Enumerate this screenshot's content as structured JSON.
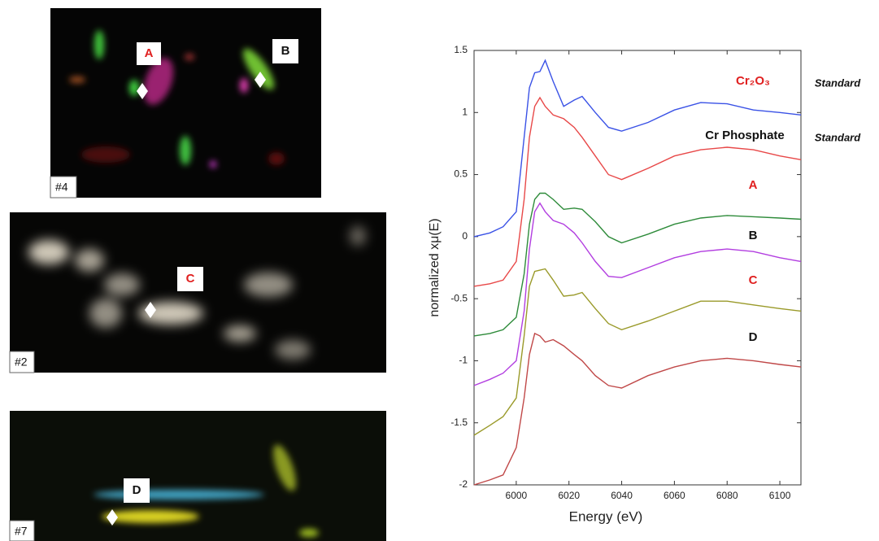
{
  "chart_data": {
    "type": "line",
    "xlabel": "Energy (eV)",
    "ylabel": "normalized xμ(E)",
    "x": [
      5984,
      5990,
      5995,
      6000,
      6003,
      6005,
      6007,
      6009,
      6011,
      6014,
      6018,
      6022,
      6025,
      6030,
      6035,
      6040,
      6050,
      6060,
      6070,
      6080,
      6090,
      6100,
      6108
    ],
    "xlim": [
      5984,
      6108
    ],
    "xticks": [
      6000,
      6020,
      6040,
      6060,
      6080,
      6100
    ],
    "ylim": [
      -2,
      1.5
    ],
    "yticks": [
      -2,
      -1.5,
      -1,
      -0.5,
      0,
      0.5,
      1,
      1.5
    ],
    "series": [
      {
        "name": "Cr₂O₃",
        "tag": "Standard",
        "color": "#3a52e6",
        "label_color": "#e02020",
        "values": [
          0.0,
          0.03,
          0.08,
          0.2,
          0.8,
          1.2,
          1.32,
          1.33,
          1.42,
          1.25,
          1.05,
          1.1,
          1.13,
          1.0,
          0.88,
          0.85,
          0.92,
          1.02,
          1.08,
          1.07,
          1.02,
          1.0,
          0.98
        ]
      },
      {
        "name": "Cr Phosphate",
        "tag": "Standard",
        "color": "#e84848",
        "label_color": "#111111",
        "values": [
          -0.4,
          -0.38,
          -0.35,
          -0.2,
          0.3,
          0.8,
          1.05,
          1.12,
          1.05,
          0.98,
          0.95,
          0.88,
          0.8,
          0.65,
          0.5,
          0.46,
          0.55,
          0.65,
          0.7,
          0.72,
          0.7,
          0.65,
          0.62
        ]
      },
      {
        "name": "A",
        "color": "#2e8b3a",
        "label_color": "#e02020",
        "values": [
          -0.8,
          -0.78,
          -0.75,
          -0.65,
          -0.3,
          0.1,
          0.3,
          0.35,
          0.35,
          0.3,
          0.22,
          0.23,
          0.22,
          0.12,
          0.0,
          -0.05,
          0.02,
          0.1,
          0.15,
          0.17,
          0.16,
          0.15,
          0.14
        ]
      },
      {
        "name": "B",
        "color": "#b23ee0",
        "label_color": "#111111",
        "values": [
          -1.2,
          -1.15,
          -1.1,
          -1.0,
          -0.6,
          -0.1,
          0.2,
          0.27,
          0.2,
          0.13,
          0.1,
          0.03,
          -0.05,
          -0.2,
          -0.32,
          -0.33,
          -0.25,
          -0.17,
          -0.12,
          -0.1,
          -0.12,
          -0.17,
          -0.2
        ]
      },
      {
        "name": "C",
        "color": "#9a9a2a",
        "label_color": "#e02020",
        "values": [
          -1.6,
          -1.52,
          -1.45,
          -1.3,
          -0.8,
          -0.4,
          -0.28,
          -0.27,
          -0.26,
          -0.35,
          -0.48,
          -0.47,
          -0.45,
          -0.58,
          -0.7,
          -0.75,
          -0.68,
          -0.6,
          -0.52,
          -0.52,
          -0.55,
          -0.58,
          -0.6
        ]
      },
      {
        "name": "D",
        "color": "#c04848",
        "label_color": "#111111",
        "values": [
          -2.0,
          -1.96,
          -1.92,
          -1.7,
          -1.3,
          -0.95,
          -0.78,
          -0.8,
          -0.85,
          -0.83,
          -0.88,
          -0.95,
          -1.0,
          -1.12,
          -1.2,
          -1.22,
          -1.12,
          -1.05,
          -1.0,
          -0.98,
          -1.0,
          -1.03,
          -1.05
        ]
      }
    ]
  },
  "images": [
    {
      "id": "#4",
      "spots": [
        "A",
        "B"
      ]
    },
    {
      "id": "#2",
      "spots": [
        "C"
      ]
    },
    {
      "id": "#7",
      "spots": [
        "D"
      ]
    }
  ]
}
